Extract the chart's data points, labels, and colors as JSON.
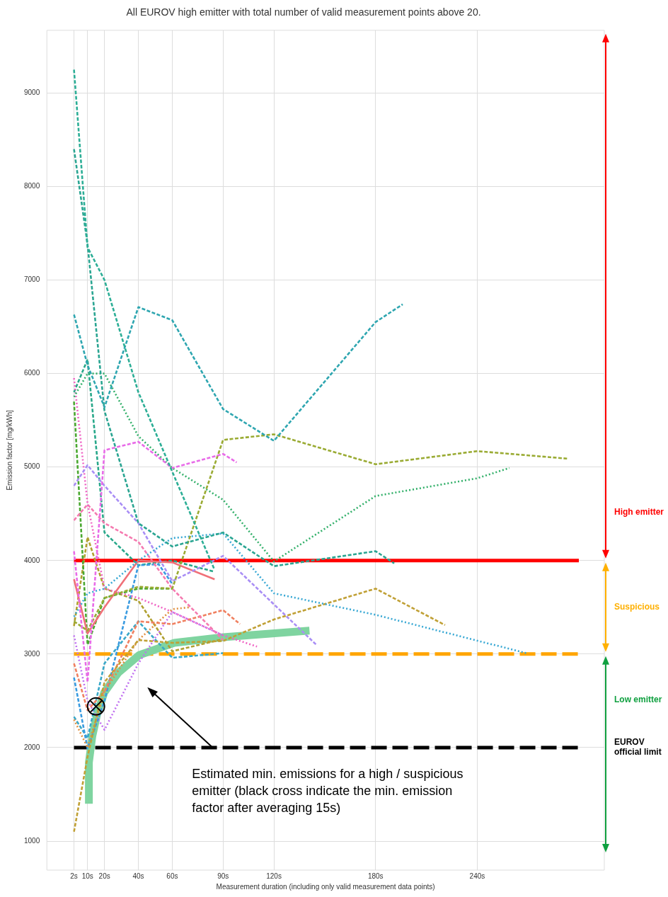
{
  "chart_data": {
    "type": "line",
    "title": "All EUROV high emitter with total number of valid measurement points above 20.",
    "xlabel": "Measurement duration (including only valid measurement data points)",
    "ylabel": "Emission factor [mg/kWh]",
    "xlim": [
      -14,
      315
    ],
    "xticks": [
      {
        "value": 2,
        "label": "2s"
      },
      {
        "value": 10,
        "label": "10s"
      },
      {
        "value": 20,
        "label": "20s"
      },
      {
        "value": 40,
        "label": "40s"
      },
      {
        "value": 60,
        "label": "60s"
      },
      {
        "value": 90,
        "label": "90s"
      },
      {
        "value": 120,
        "label": "120s"
      },
      {
        "value": 180,
        "label": "180s"
      },
      {
        "value": 240,
        "label": "240s"
      }
    ],
    "ylim": [
      690,
      9670
    ],
    "yticks": [
      1000,
      2000,
      3000,
      4000,
      5000,
      6000,
      7000,
      8000,
      9000
    ],
    "grid": true,
    "legend": false,
    "series": [
      {
        "type": "line",
        "color": "#7fd4a0",
        "line_style": "solid",
        "x": [
          10.8,
          10.8,
          12.8,
          15.7,
          19.9,
          28.1,
          40.5,
          61.2,
          90.2,
          141
        ],
        "values": [
          1400,
          1840,
          2120,
          2360,
          2590,
          2800,
          2990,
          3120,
          3180,
          3250
        ]
      },
      {
        "type": "scatter",
        "marker": "circle",
        "color": "#000000",
        "x": [
          15
        ],
        "values": [
          2440
        ]
      },
      {
        "color": "#2cae96",
        "line_style": "dashed",
        "x": [
          2,
          10,
          20,
          40,
          60,
          85
        ],
        "values": [
          9250,
          7350,
          7000,
          5800,
          4950,
          3900
        ]
      },
      {
        "color": "#2ea6b0",
        "line_style": "dashed",
        "x": [
          2,
          10,
          20,
          40,
          60,
          90,
          120,
          180,
          196
        ],
        "values": [
          6630,
          6090,
          5640,
          6710,
          6570,
          5620,
          5280,
          6550,
          6740
        ]
      },
      {
        "color": "#2aa592",
        "line_style": "dashed",
        "x": [
          2,
          10,
          20,
          40,
          60,
          90,
          120,
          180,
          191
        ],
        "values": [
          8400,
          7380,
          5600,
          4400,
          4150,
          4300,
          3940,
          4100,
          3970
        ]
      },
      {
        "color": "#e86be8",
        "line_style": "dashed",
        "x": [
          2,
          10,
          20,
          40,
          60,
          90,
          98
        ],
        "values": [
          4100,
          2700,
          5180,
          5270,
          4990,
          5140,
          5050
        ]
      },
      {
        "color": "#9aab33",
        "line_style": "dashed",
        "x": [
          2,
          10,
          20,
          40,
          60,
          90,
          120,
          180,
          240,
          293
        ],
        "values": [
          3350,
          3250,
          3600,
          3720,
          3700,
          5290,
          5350,
          5030,
          5170,
          5090
        ]
      },
      {
        "color": "#33b06a",
        "line_style": "dotted",
        "x": [
          2,
          10,
          20,
          40,
          60,
          90,
          120,
          180,
          240,
          259
        ],
        "values": [
          5750,
          6000,
          6000,
          5330,
          4990,
          4650,
          3990,
          4690,
          4880,
          4990
        ]
      },
      {
        "color": "#38a8d4",
        "line_style": "dotted",
        "x": [
          2,
          10,
          20,
          40,
          60,
          90,
          120,
          180,
          269
        ],
        "values": [
          3400,
          3650,
          3700,
          4000,
          4240,
          4290,
          3650,
          3420,
          3010
        ]
      },
      {
        "color": "#c0a035",
        "line_style": "dashed",
        "x": [
          2,
          10,
          20,
          40,
          60,
          90,
          120,
          180,
          221
        ],
        "values": [
          1100,
          1900,
          2700,
          3150,
          3120,
          3140,
          3370,
          3700,
          3310
        ]
      },
      {
        "color": "#a98ef5",
        "line_style": "dashed",
        "x": [
          2,
          10,
          20,
          40,
          60,
          90,
          145
        ],
        "values": [
          4800,
          5020,
          4800,
          4400,
          3780,
          4050,
          3100
        ]
      },
      {
        "color": "#f07078",
        "line_style": "solid",
        "x": [
          2,
          10,
          20,
          40,
          60,
          85
        ],
        "values": [
          3800,
          3220,
          3500,
          4000,
          3980,
          3800
        ]
      },
      {
        "color": "#f062c4",
        "line_style": "dotted",
        "x": [
          2,
          10,
          20,
          40,
          60,
          90,
          110
        ],
        "values": [
          5950,
          4610,
          3700,
          3600,
          3450,
          3200,
          3080
        ]
      },
      {
        "color": "#f57ab0",
        "line_style": "dashed",
        "x": [
          2,
          10,
          20,
          40,
          60,
          90
        ],
        "values": [
          4430,
          4600,
          4400,
          4200,
          3700,
          3150
        ]
      },
      {
        "color": "#f08060",
        "line_style": "dashed",
        "x": [
          2,
          10,
          20,
          40,
          60,
          90,
          100
        ],
        "values": [
          2900,
          2400,
          2600,
          3350,
          3320,
          3470,
          3320
        ]
      },
      {
        "color": "#e09040",
        "line_style": "dotted",
        "x": [
          2,
          10,
          20,
          40,
          60,
          70
        ],
        "values": [
          2300,
          2000,
          2600,
          3150,
          3480,
          3500
        ]
      },
      {
        "color": "#3a9be0",
        "line_style": "dashed",
        "x": [
          2,
          10,
          20,
          40,
          52,
          60
        ],
        "values": [
          2750,
          1990,
          2500,
          3950,
          3960,
          3750
        ]
      },
      {
        "color": "#3aa8c8",
        "line_style": "dashed",
        "x": [
          2,
          10,
          20,
          40,
          60,
          90
        ],
        "values": [
          2330,
          2100,
          2900,
          3350,
          2960,
          3010
        ]
      },
      {
        "color": "#c070f0",
        "line_style": "dotted",
        "x": [
          2,
          10,
          20,
          40,
          60,
          90
        ],
        "values": [
          3200,
          2500,
          2190,
          2900,
          3450,
          3200
        ]
      },
      {
        "color": "#4aa830",
        "line_style": "dashed",
        "x": [
          2,
          10,
          20,
          40,
          60
        ],
        "values": [
          5700,
          3100,
          3600,
          3700,
          3700
        ]
      },
      {
        "color": "#b0a030",
        "line_style": "dashed",
        "x": [
          2,
          10,
          20,
          40,
          60,
          90
        ],
        "values": [
          3300,
          4250,
          3700,
          3570,
          3030,
          3160
        ]
      },
      {
        "color": "#28a88a",
        "line_style": "dashed",
        "x": [
          2,
          10,
          20,
          40,
          60,
          85
        ],
        "values": [
          5800,
          6150,
          4300,
          3950,
          4000,
          3880
        ]
      }
    ],
    "ref_lines": [
      {
        "axis": "y",
        "value": 4000,
        "color": "#ff0000",
        "line_style": "solid"
      },
      {
        "axis": "y",
        "value": 3000,
        "color": "#ffa500",
        "line_style": "dashed"
      },
      {
        "axis": "y",
        "value": 2000,
        "color": "#000000",
        "line_style": "dashed",
        "label": "EUROV official limit"
      }
    ],
    "annotations": [
      "Estimated min. emissions for a high / suspicious emitter (black cross indicate the min. emission factor after averaging 15s)",
      "High emitter",
      "Suspicious",
      "Low emitter"
    ]
  }
}
